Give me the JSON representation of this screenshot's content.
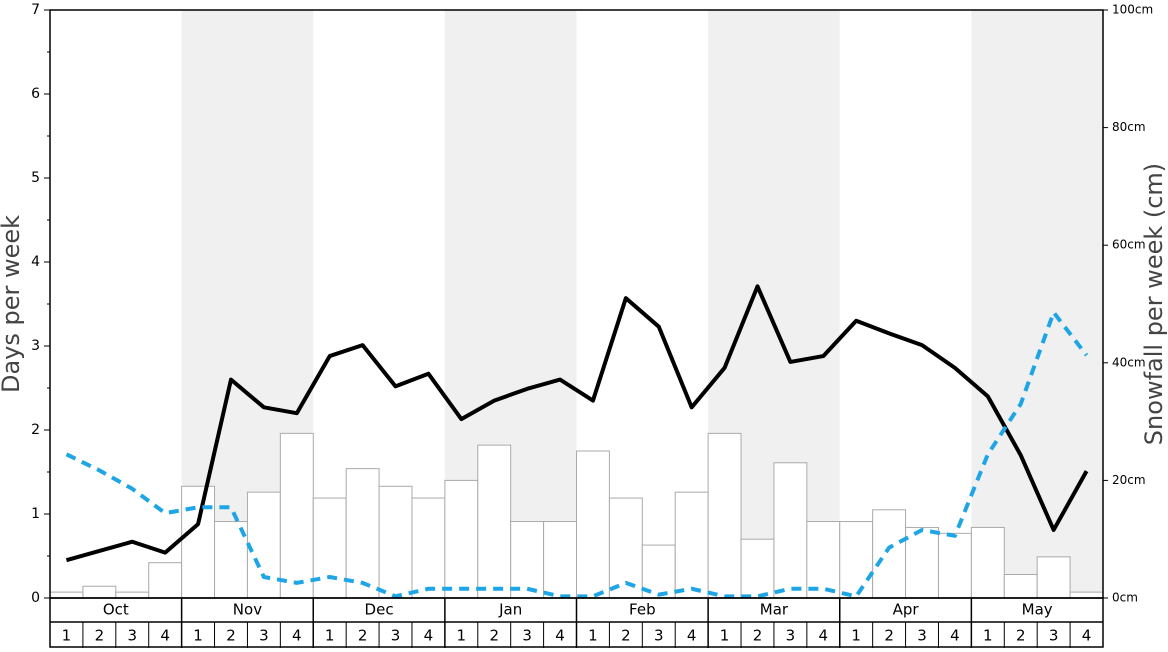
{
  "chart_data": {
    "type": "bar",
    "y_label": "Days per week",
    "y2_label": "Snowfall per week (cm)",
    "groups": [
      "Oct",
      "Nov",
      "Dec",
      "Jan",
      "Feb",
      "Mar",
      "Apr",
      "May"
    ],
    "categories": [
      "1",
      "2",
      "3",
      "4",
      "1",
      "2",
      "3",
      "4",
      "1",
      "2",
      "3",
      "4",
      "1",
      "2",
      "3",
      "4",
      "1",
      "2",
      "3",
      "4",
      "1",
      "2",
      "3",
      "4",
      "1",
      "2",
      "3",
      "4",
      "1",
      "2",
      "3",
      "4"
    ],
    "ylim": [
      0,
      7
    ],
    "yticks": [
      0,
      1,
      2,
      3,
      4,
      5,
      6,
      7
    ],
    "y2lim": [
      0,
      100
    ],
    "y2ticks": [
      {
        "value": 0,
        "label": "0cm"
      },
      {
        "value": 20,
        "label": "20cm"
      },
      {
        "value": 40,
        "label": "40cm"
      },
      {
        "value": 60,
        "label": "60cm"
      },
      {
        "value": 80,
        "label": "80cm"
      },
      {
        "value": 100,
        "label": "100cm"
      }
    ],
    "series": [
      {
        "type": "bar",
        "axis": "y2",
        "color": "#ffffff",
        "values": [
          1,
          2,
          1,
          6,
          19,
          13,
          18,
          28,
          17,
          22,
          19,
          17,
          20,
          26,
          13,
          13,
          25,
          17,
          9,
          18,
          28,
          10,
          23,
          13,
          13,
          15,
          12,
          11,
          12,
          4,
          7,
          1
        ]
      },
      {
        "type": "line",
        "color": "#000000",
        "dashed": false,
        "values": [
          0.45,
          0.56,
          0.67,
          0.54,
          0.88,
          2.6,
          2.27,
          2.2,
          2.88,
          3.01,
          2.52,
          2.67,
          2.13,
          2.35,
          2.49,
          2.6,
          2.35,
          3.57,
          3.23,
          2.27,
          2.74,
          3.71,
          2.81,
          2.88,
          3.3,
          3.15,
          3.01,
          2.74,
          2.4,
          1.7,
          0.81,
          1.51
        ]
      },
      {
        "type": "line",
        "color": "#1ea5e6",
        "dashed": true,
        "values": [
          1.71,
          1.52,
          1.3,
          1.01,
          1.08,
          1.08,
          0.25,
          0.18,
          0.25,
          0.18,
          0.02,
          0.11,
          0.11,
          0.11,
          0.11,
          0.02,
          0.02,
          0.18,
          0.04,
          0.11,
          0.02,
          0.02,
          0.11,
          0.11,
          0.02,
          0.6,
          0.81,
          0.74,
          1.71,
          2.31,
          3.4,
          2.89
        ]
      }
    ]
  }
}
